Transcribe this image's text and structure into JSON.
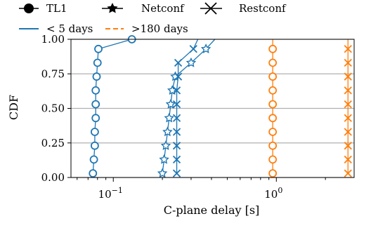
{
  "chart_data": {
    "type": "line",
    "xlabel": "C-plane delay [s]",
    "ylabel": "CDF",
    "xscale": "log",
    "xlim": [
      0.055,
      3.0
    ],
    "ylim": [
      0.0,
      1.0
    ],
    "yticks": [
      "0.00",
      "0.25",
      "0.50",
      "0.75",
      "1.00"
    ],
    "xticks": [
      {
        "value": 0.1,
        "base": "10",
        "exp": "−1"
      },
      {
        "value": 1.0,
        "base": "10",
        "exp": "0"
      }
    ],
    "grid": "horizontal",
    "legend": {
      "placement": "top",
      "markers": [
        {
          "label": "TL1",
          "marker": "circle"
        },
        {
          "label": "Netconf",
          "marker": "star"
        },
        {
          "label": "Restconf",
          "marker": "x"
        }
      ],
      "lines": [
        {
          "label": "< 5 days",
          "color": "#1f77b4",
          "style": "solid"
        },
        {
          "label": ">180 days",
          "color": "#ff7f0e",
          "style": "dashed"
        }
      ]
    },
    "series": [
      {
        "protocol": "TL1",
        "group": "< 5 days",
        "color": "#1f77b4",
        "marker": "circle",
        "x": [
          0.075,
          0.076,
          0.077,
          0.077,
          0.078,
          0.078,
          0.078,
          0.079,
          0.08,
          0.081,
          0.13
        ],
        "y": [
          0.03,
          0.13,
          0.23,
          0.33,
          0.43,
          0.53,
          0.63,
          0.73,
          0.83,
          0.93,
          1.0
        ]
      },
      {
        "protocol": "Netconf",
        "group": "< 5 days",
        "color": "#1f77b4",
        "marker": "star",
        "x": [
          0.2,
          0.205,
          0.21,
          0.215,
          0.22,
          0.225,
          0.23,
          0.24,
          0.3,
          0.37,
          0.42
        ],
        "y": [
          0.03,
          0.13,
          0.23,
          0.33,
          0.43,
          0.53,
          0.63,
          0.73,
          0.83,
          0.93,
          1.0
        ]
      },
      {
        "protocol": "Restconf",
        "group": "< 5 days",
        "color": "#1f77b4",
        "marker": "x",
        "x": [
          0.245,
          0.245,
          0.245,
          0.245,
          0.245,
          0.245,
          0.245,
          0.25,
          0.25,
          0.31,
          0.33
        ],
        "y": [
          0.03,
          0.13,
          0.23,
          0.33,
          0.43,
          0.53,
          0.63,
          0.73,
          0.83,
          0.93,
          1.0
        ]
      },
      {
        "protocol": "TL1",
        "group": ">180 days",
        "color": "#ff7f0e",
        "marker": "circle",
        "x": [
          0.95,
          0.95,
          0.95,
          0.95,
          0.95,
          0.95,
          0.95,
          0.95,
          0.95,
          0.95,
          0.95
        ],
        "y": [
          0.03,
          0.13,
          0.23,
          0.33,
          0.43,
          0.53,
          0.63,
          0.73,
          0.83,
          0.93,
          1.0
        ]
      },
      {
        "protocol": "Restconf",
        "group": ">180 days",
        "color": "#ff7f0e",
        "marker": "x",
        "x": [
          2.75,
          2.75,
          2.75,
          2.75,
          2.75,
          2.75,
          2.75,
          2.75,
          2.75,
          2.75,
          2.75
        ],
        "y": [
          0.03,
          0.13,
          0.23,
          0.33,
          0.43,
          0.53,
          0.63,
          0.73,
          0.83,
          0.93,
          1.0
        ]
      }
    ]
  }
}
